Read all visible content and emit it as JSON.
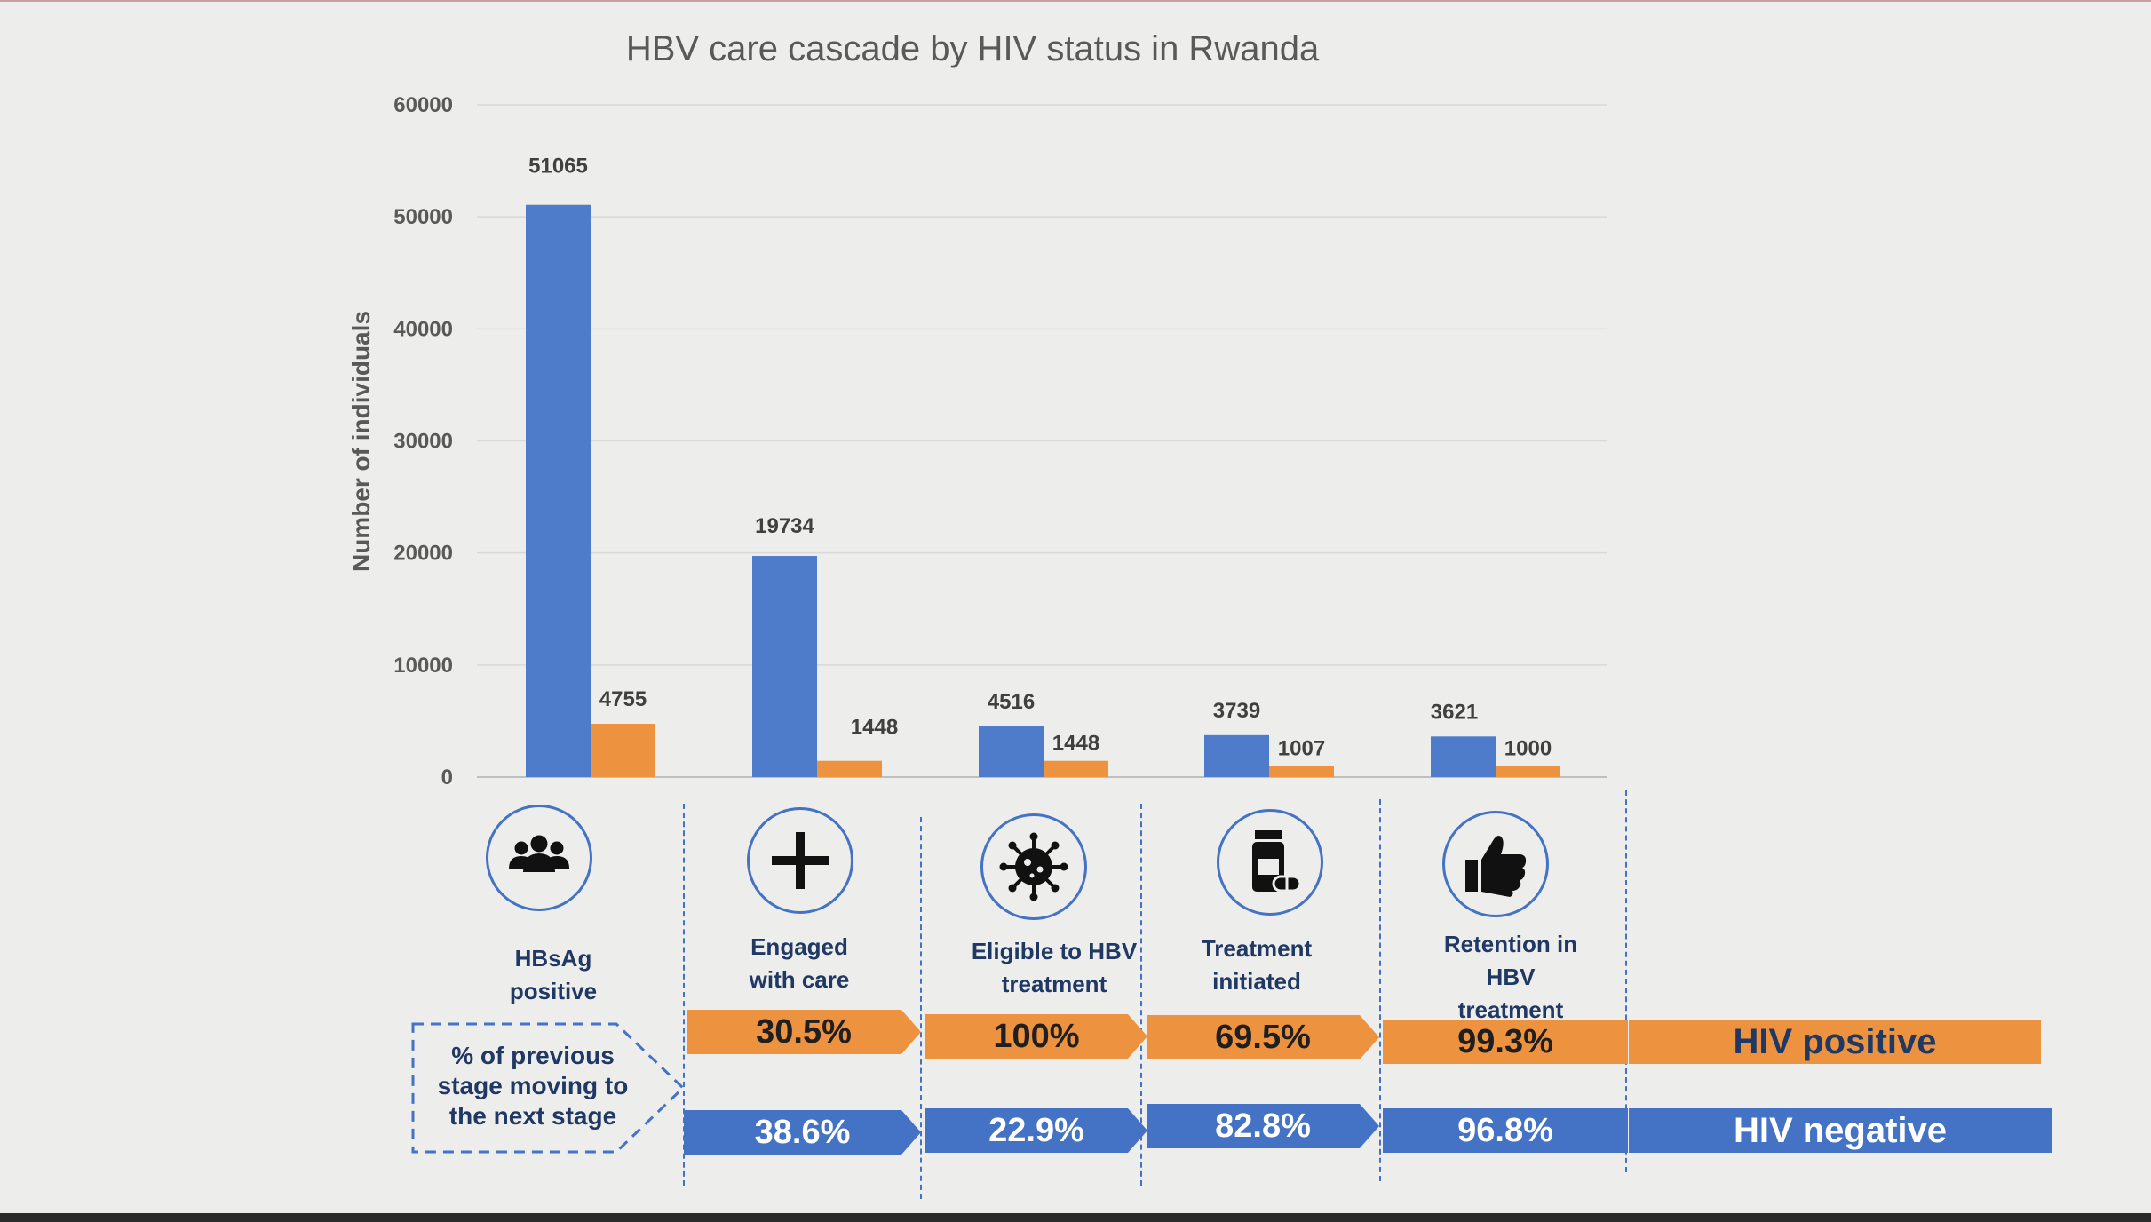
{
  "chart_data": {
    "type": "bar",
    "title": "HBV care cascade by HIV status in Rwanda",
    "ylabel": "Number of individuals",
    "xlabel": "",
    "ylim": [
      0,
      60000
    ],
    "yticks": [
      "0",
      "10000",
      "20000",
      "30000",
      "40000",
      "50000",
      "60000"
    ],
    "grid": true,
    "categories": [
      "HBsAg positive",
      "Engaged with care",
      "Eligible to HBV treatment",
      "Treatment initiated",
      "Retention in HBV treatment"
    ],
    "series": [
      {
        "name": "HIV negative",
        "color": "#4e7ccb",
        "values": [
          51065,
          19734,
          4516,
          3739,
          3621
        ]
      },
      {
        "name": "HIV positive",
        "color": "#ed933f",
        "values": [
          4755,
          1448,
          1448,
          1007,
          1000
        ]
      }
    ],
    "value_labels": {
      "HIV negative": [
        "51065",
        "19734",
        "4516",
        "3739",
        "3621"
      ],
      "HIV positive": [
        "4755",
        "1448",
        "1448",
        "1007",
        "1000"
      ]
    }
  },
  "stages": [
    {
      "icon": "people-group-icon",
      "line1": "HBsAg",
      "line2": "positive",
      "line3": ""
    },
    {
      "icon": "plus-icon",
      "line1": "Engaged",
      "line2": "with care",
      "line3": ""
    },
    {
      "icon": "virus-icon",
      "line1": "Eligible to HBV",
      "line2": "treatment",
      "line3": ""
    },
    {
      "icon": "medicine-bottle-icon",
      "line1": "Treatment",
      "line2": "initiated",
      "line3": ""
    },
    {
      "icon": "thumbs-up-icon",
      "line1": "Retention in",
      "line2": "HBV",
      "line3": "treatment"
    }
  ],
  "transitions": {
    "note_lines": [
      "% of previous",
      "stage moving to",
      "the next stage"
    ],
    "hiv_positive": [
      "30.5%",
      "100%",
      "69.5%",
      "99.3%"
    ],
    "hiv_negative": [
      "38.6%",
      "22.9%",
      "82.8%",
      "96.8%"
    ],
    "legend_positive": "HIV positive",
    "legend_negative": "HIV negative"
  },
  "colors": {
    "blue": "#4472c4",
    "orange": "#ed933f",
    "navy": "#1f3864"
  }
}
